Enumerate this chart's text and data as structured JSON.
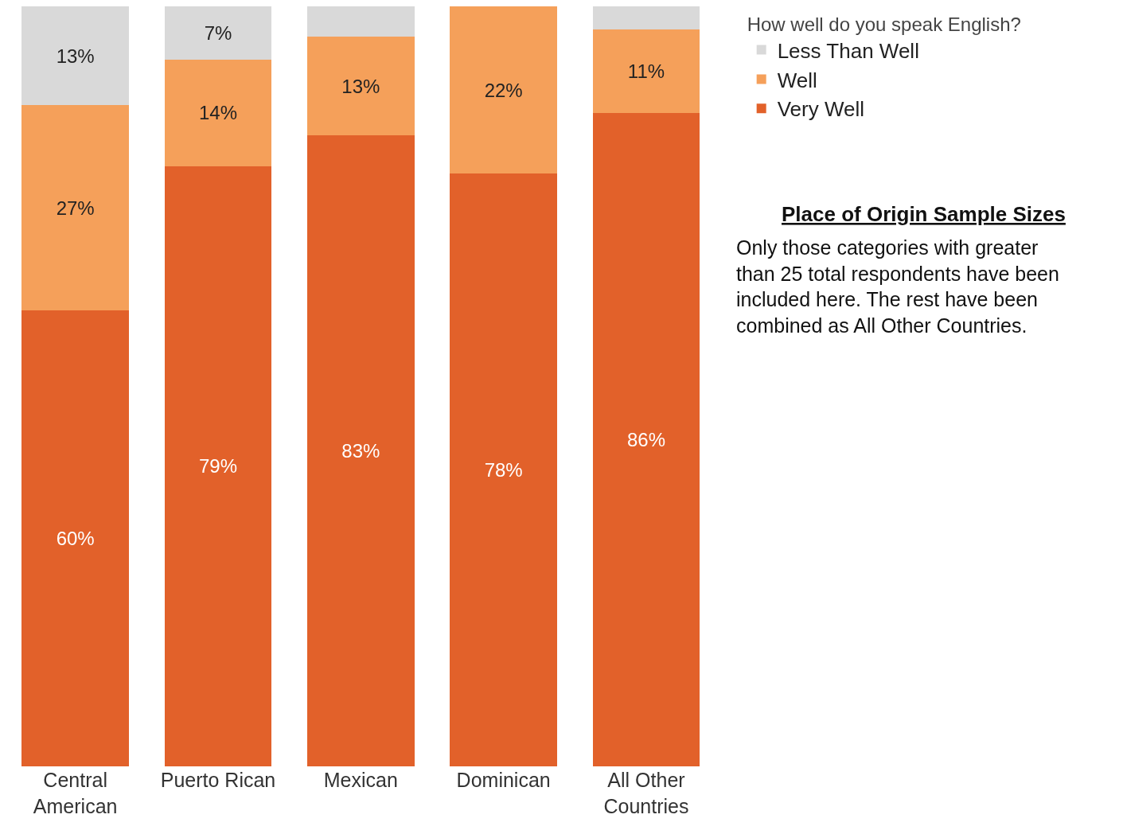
{
  "chart_data": {
    "type": "bar",
    "stacked": true,
    "categories": [
      "Central American",
      "Puerto Rican",
      "Mexican",
      "Dominican",
      "All Other Countries"
    ],
    "series": [
      {
        "name": "Very Well",
        "color": "#e2612a",
        "values": [
          60,
          79,
          83,
          78,
          86
        ],
        "value_labels": [
          "60%",
          "79%",
          "83%",
          "78%",
          "86%"
        ]
      },
      {
        "name": "Well",
        "color": "#f5a05a",
        "values": [
          27,
          14,
          13,
          22,
          11
        ],
        "value_labels": [
          "27%",
          "14%",
          "13%",
          "22%",
          "11%"
        ]
      },
      {
        "name": "Less Than Well",
        "color": "#d9d9d9",
        "values": [
          13,
          7,
          4,
          0,
          3
        ],
        "value_labels": [
          "13%",
          "7%",
          null,
          null,
          null
        ]
      }
    ],
    "ylim": [
      0,
      100
    ],
    "tick_labels": "x",
    "legend": "top right",
    "legend_title": "How well do you speak English?",
    "annotations": [
      "Place of Origin Sample Sizes",
      "Only those categories with greater than 25 total respondents have been included here. The rest have been combined as All Other Countries."
    ]
  }
}
